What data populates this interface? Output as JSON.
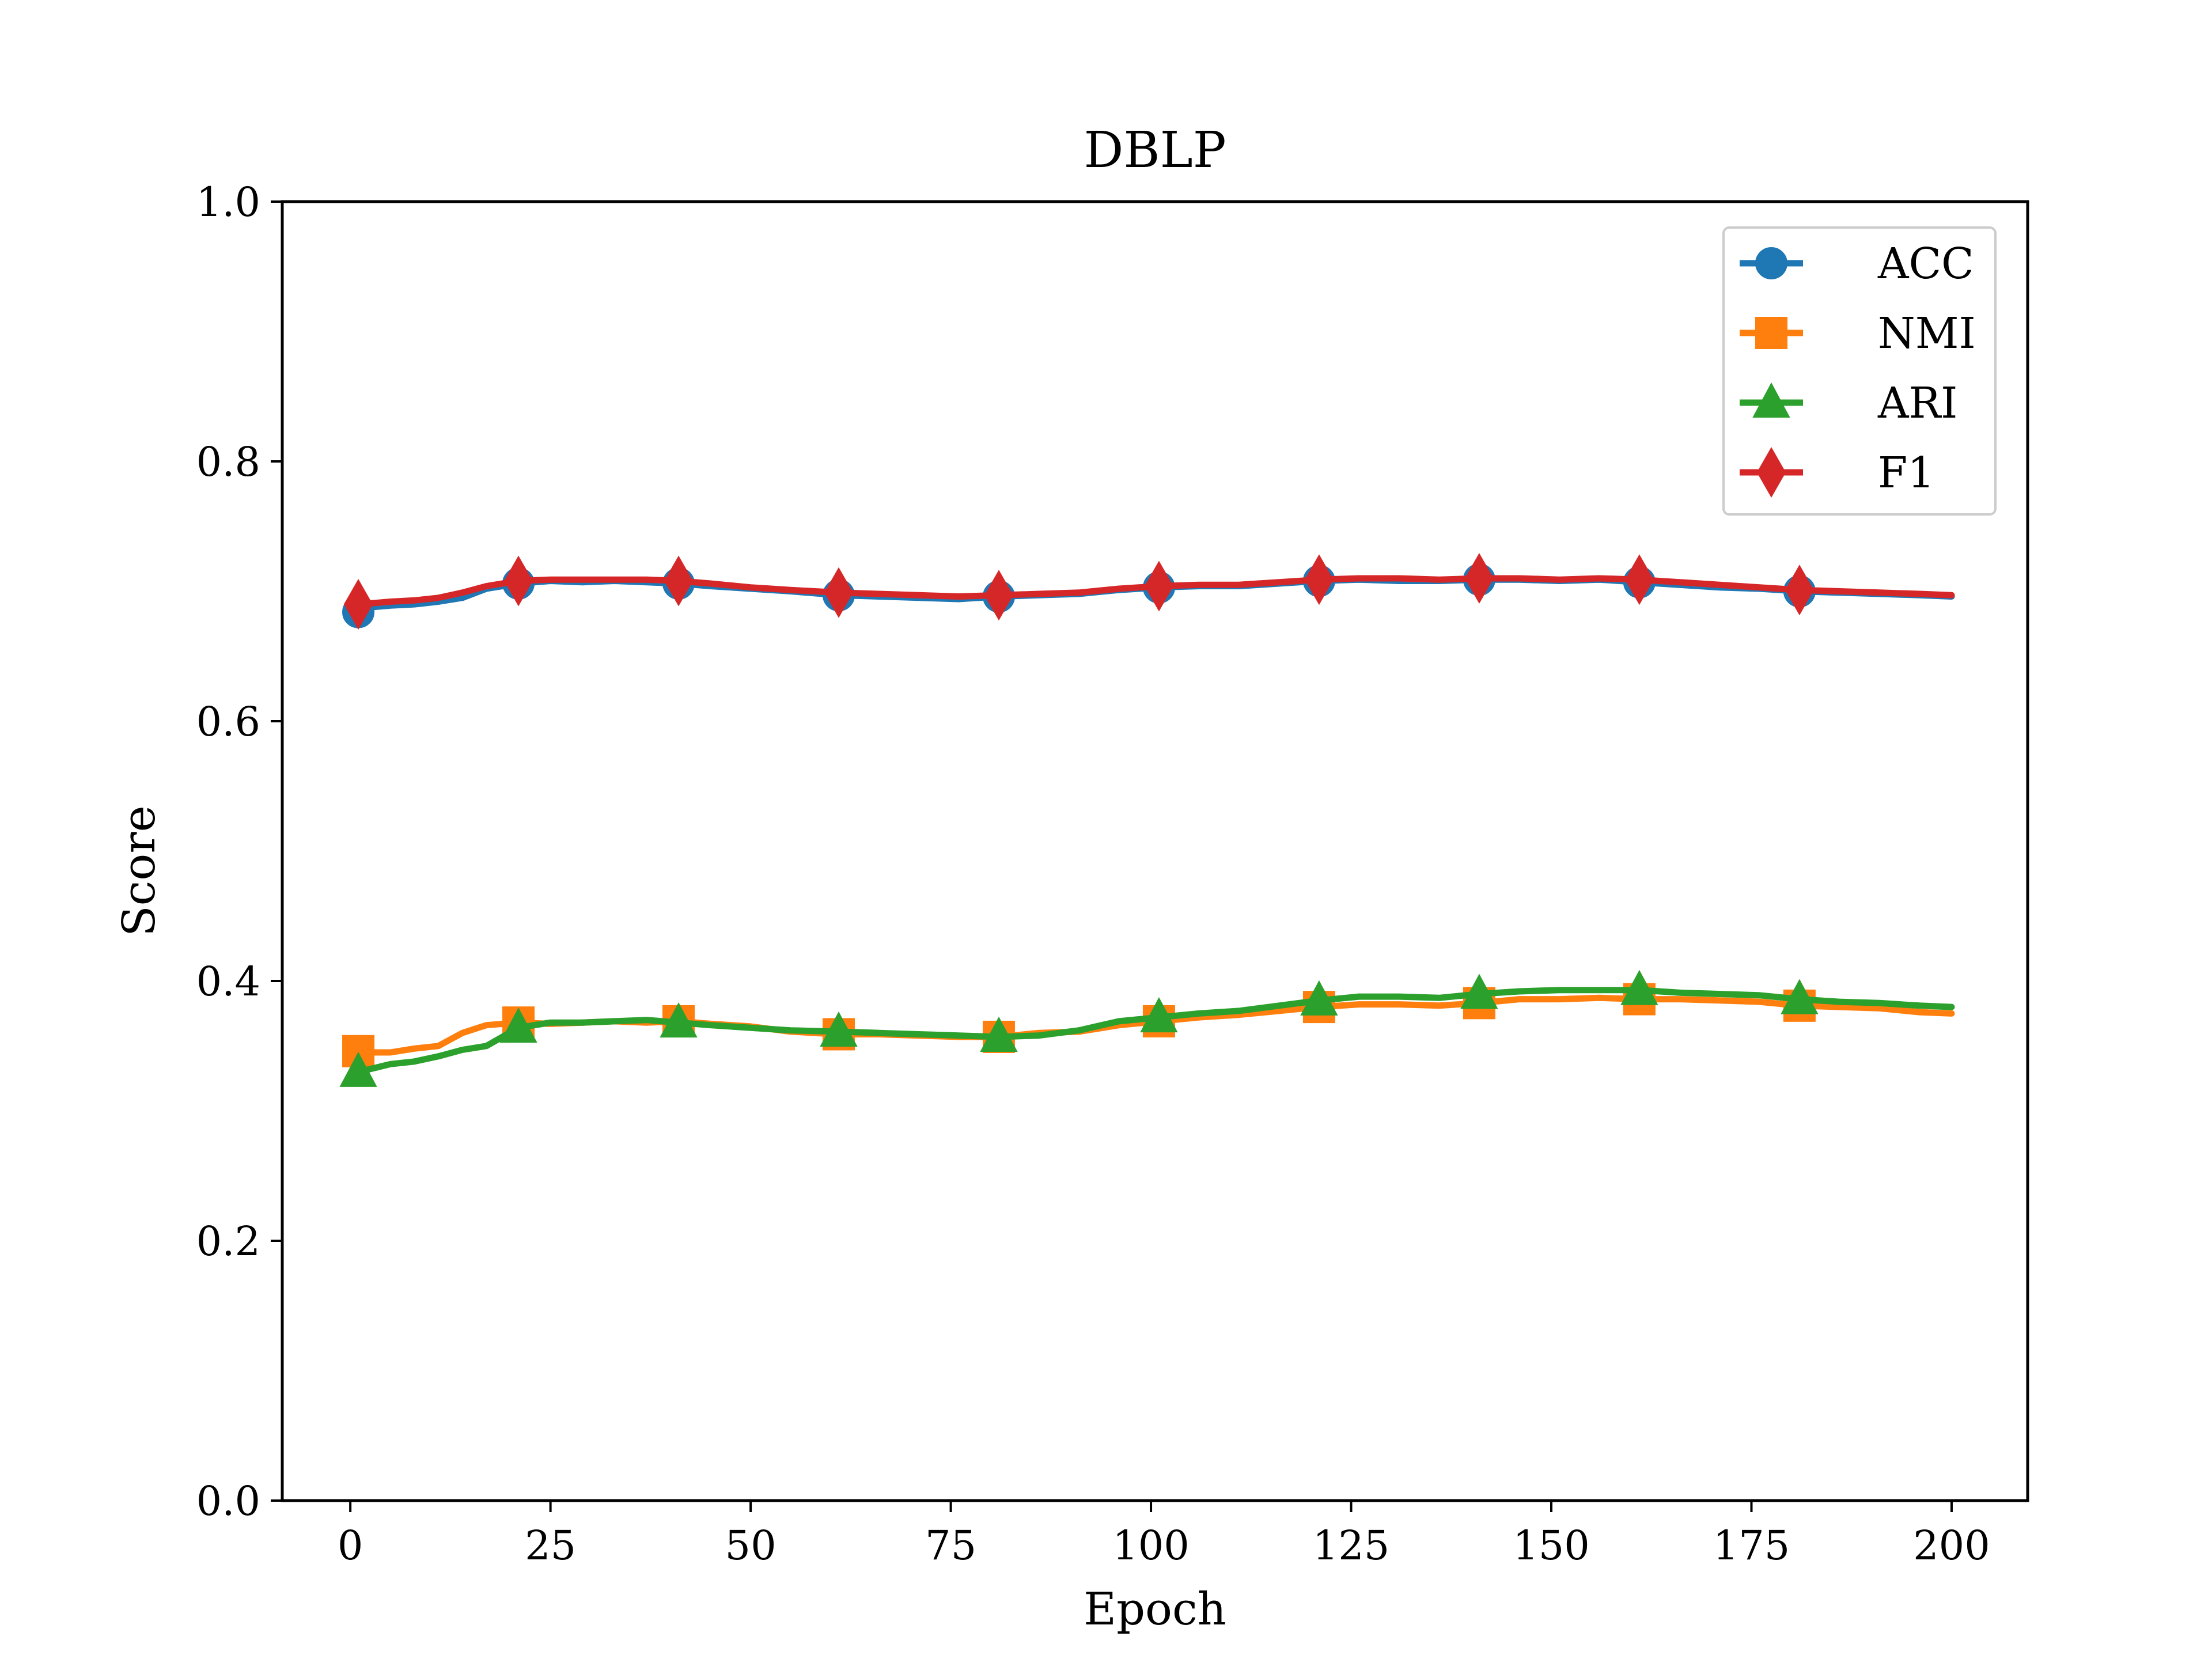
{
  "chart_data": {
    "type": "line",
    "title": "DBLP",
    "xlabel": "Epoch",
    "ylabel": "Score",
    "xlim": [
      -8.5,
      209.5
    ],
    "ylim": [
      0.0,
      1.0
    ],
    "xticks": [
      0,
      25,
      50,
      75,
      100,
      125,
      150,
      175,
      200
    ],
    "yticks": [
      0.0,
      0.2,
      0.4,
      0.6,
      0.8,
      1.0
    ],
    "xtick_labels": [
      "0",
      "25",
      "50",
      "75",
      "100",
      "125",
      "150",
      "175",
      "200"
    ],
    "ytick_labels": [
      "0.0",
      "0.2",
      "0.4",
      "0.6",
      "0.8",
      "1.0"
    ],
    "grid": false,
    "legend_position": "top-right",
    "series": [
      {
        "name": "ACC",
        "color": "#1f77b4",
        "marker": "circle",
        "marker_x": [
          1,
          21,
          41,
          61,
          81,
          101,
          121,
          141,
          161,
          181
        ],
        "x": [
          1,
          3,
          5,
          8,
          11,
          14,
          17,
          21,
          25,
          29,
          33,
          37,
          41,
          45,
          50,
          55,
          61,
          66,
          71,
          76,
          81,
          86,
          91,
          96,
          101,
          106,
          111,
          116,
          121,
          126,
          131,
          136,
          141,
          146,
          151,
          156,
          161,
          166,
          171,
          176,
          181,
          186,
          191,
          196,
          200
        ],
        "y": [
          0.684,
          0.688,
          0.689,
          0.69,
          0.692,
          0.695,
          0.702,
          0.706,
          0.708,
          0.707,
          0.708,
          0.707,
          0.706,
          0.704,
          0.702,
          0.7,
          0.697,
          0.696,
          0.695,
          0.694,
          0.696,
          0.697,
          0.698,
          0.701,
          0.703,
          0.704,
          0.704,
          0.706,
          0.708,
          0.709,
          0.708,
          0.708,
          0.709,
          0.709,
          0.708,
          0.709,
          0.707,
          0.705,
          0.703,
          0.702,
          0.7,
          0.699,
          0.698,
          0.697,
          0.696
        ]
      },
      {
        "name": "NMI",
        "color": "#ff7f0e",
        "marker": "square",
        "marker_x": [
          1,
          21,
          41,
          61,
          81,
          101,
          121,
          141,
          161,
          181
        ],
        "x": [
          1,
          3,
          5,
          8,
          11,
          14,
          17,
          21,
          25,
          29,
          33,
          37,
          41,
          45,
          50,
          55,
          61,
          66,
          71,
          76,
          81,
          86,
          91,
          96,
          101,
          106,
          111,
          116,
          121,
          126,
          131,
          136,
          141,
          146,
          151,
          156,
          161,
          166,
          171,
          176,
          181,
          186,
          191,
          196,
          200
        ],
        "y": [
          0.346,
          0.345,
          0.345,
          0.348,
          0.35,
          0.36,
          0.366,
          0.368,
          0.367,
          0.368,
          0.369,
          0.368,
          0.369,
          0.367,
          0.365,
          0.361,
          0.359,
          0.359,
          0.358,
          0.357,
          0.357,
          0.36,
          0.361,
          0.366,
          0.369,
          0.372,
          0.374,
          0.377,
          0.38,
          0.382,
          0.382,
          0.381,
          0.383,
          0.386,
          0.386,
          0.387,
          0.386,
          0.386,
          0.385,
          0.384,
          0.381,
          0.38,
          0.379,
          0.376,
          0.375
        ]
      },
      {
        "name": "ARI",
        "color": "#2ca02c",
        "marker": "triangle",
        "marker_x": [
          1,
          21,
          41,
          61,
          81,
          101,
          121,
          141,
          161,
          181
        ],
        "x": [
          1,
          3,
          5,
          8,
          11,
          14,
          17,
          21,
          25,
          29,
          33,
          37,
          41,
          45,
          50,
          55,
          61,
          66,
          71,
          76,
          81,
          86,
          91,
          96,
          101,
          106,
          111,
          116,
          121,
          126,
          131,
          136,
          141,
          146,
          151,
          156,
          161,
          166,
          171,
          176,
          181,
          186,
          191,
          196,
          200
        ],
        "y": [
          0.33,
          0.333,
          0.336,
          0.338,
          0.342,
          0.347,
          0.35,
          0.364,
          0.368,
          0.368,
          0.369,
          0.37,
          0.368,
          0.366,
          0.364,
          0.362,
          0.361,
          0.36,
          0.359,
          0.358,
          0.357,
          0.358,
          0.362,
          0.369,
          0.372,
          0.375,
          0.377,
          0.381,
          0.385,
          0.388,
          0.388,
          0.387,
          0.39,
          0.392,
          0.393,
          0.393,
          0.393,
          0.391,
          0.39,
          0.389,
          0.386,
          0.384,
          0.383,
          0.381,
          0.38
        ]
      },
      {
        "name": "F1",
        "color": "#d62728",
        "marker": "thin_diamond",
        "marker_x": [
          1,
          21,
          41,
          61,
          81,
          101,
          121,
          141,
          161,
          181
        ],
        "x": [
          1,
          3,
          5,
          8,
          11,
          14,
          17,
          21,
          25,
          29,
          33,
          37,
          41,
          45,
          50,
          55,
          61,
          66,
          71,
          76,
          81,
          86,
          91,
          96,
          101,
          106,
          111,
          116,
          121,
          126,
          131,
          136,
          141,
          146,
          151,
          156,
          161,
          166,
          171,
          176,
          181,
          186,
          191,
          196,
          200
        ],
        "y": [
          0.69,
          0.691,
          0.692,
          0.693,
          0.695,
          0.699,
          0.704,
          0.708,
          0.709,
          0.709,
          0.709,
          0.709,
          0.708,
          0.706,
          0.703,
          0.701,
          0.699,
          0.698,
          0.697,
          0.696,
          0.697,
          0.698,
          0.699,
          0.702,
          0.704,
          0.705,
          0.705,
          0.707,
          0.709,
          0.71,
          0.71,
          0.709,
          0.71,
          0.71,
          0.709,
          0.71,
          0.709,
          0.707,
          0.705,
          0.703,
          0.701,
          0.7,
          0.699,
          0.698,
          0.697
        ]
      }
    ]
  }
}
